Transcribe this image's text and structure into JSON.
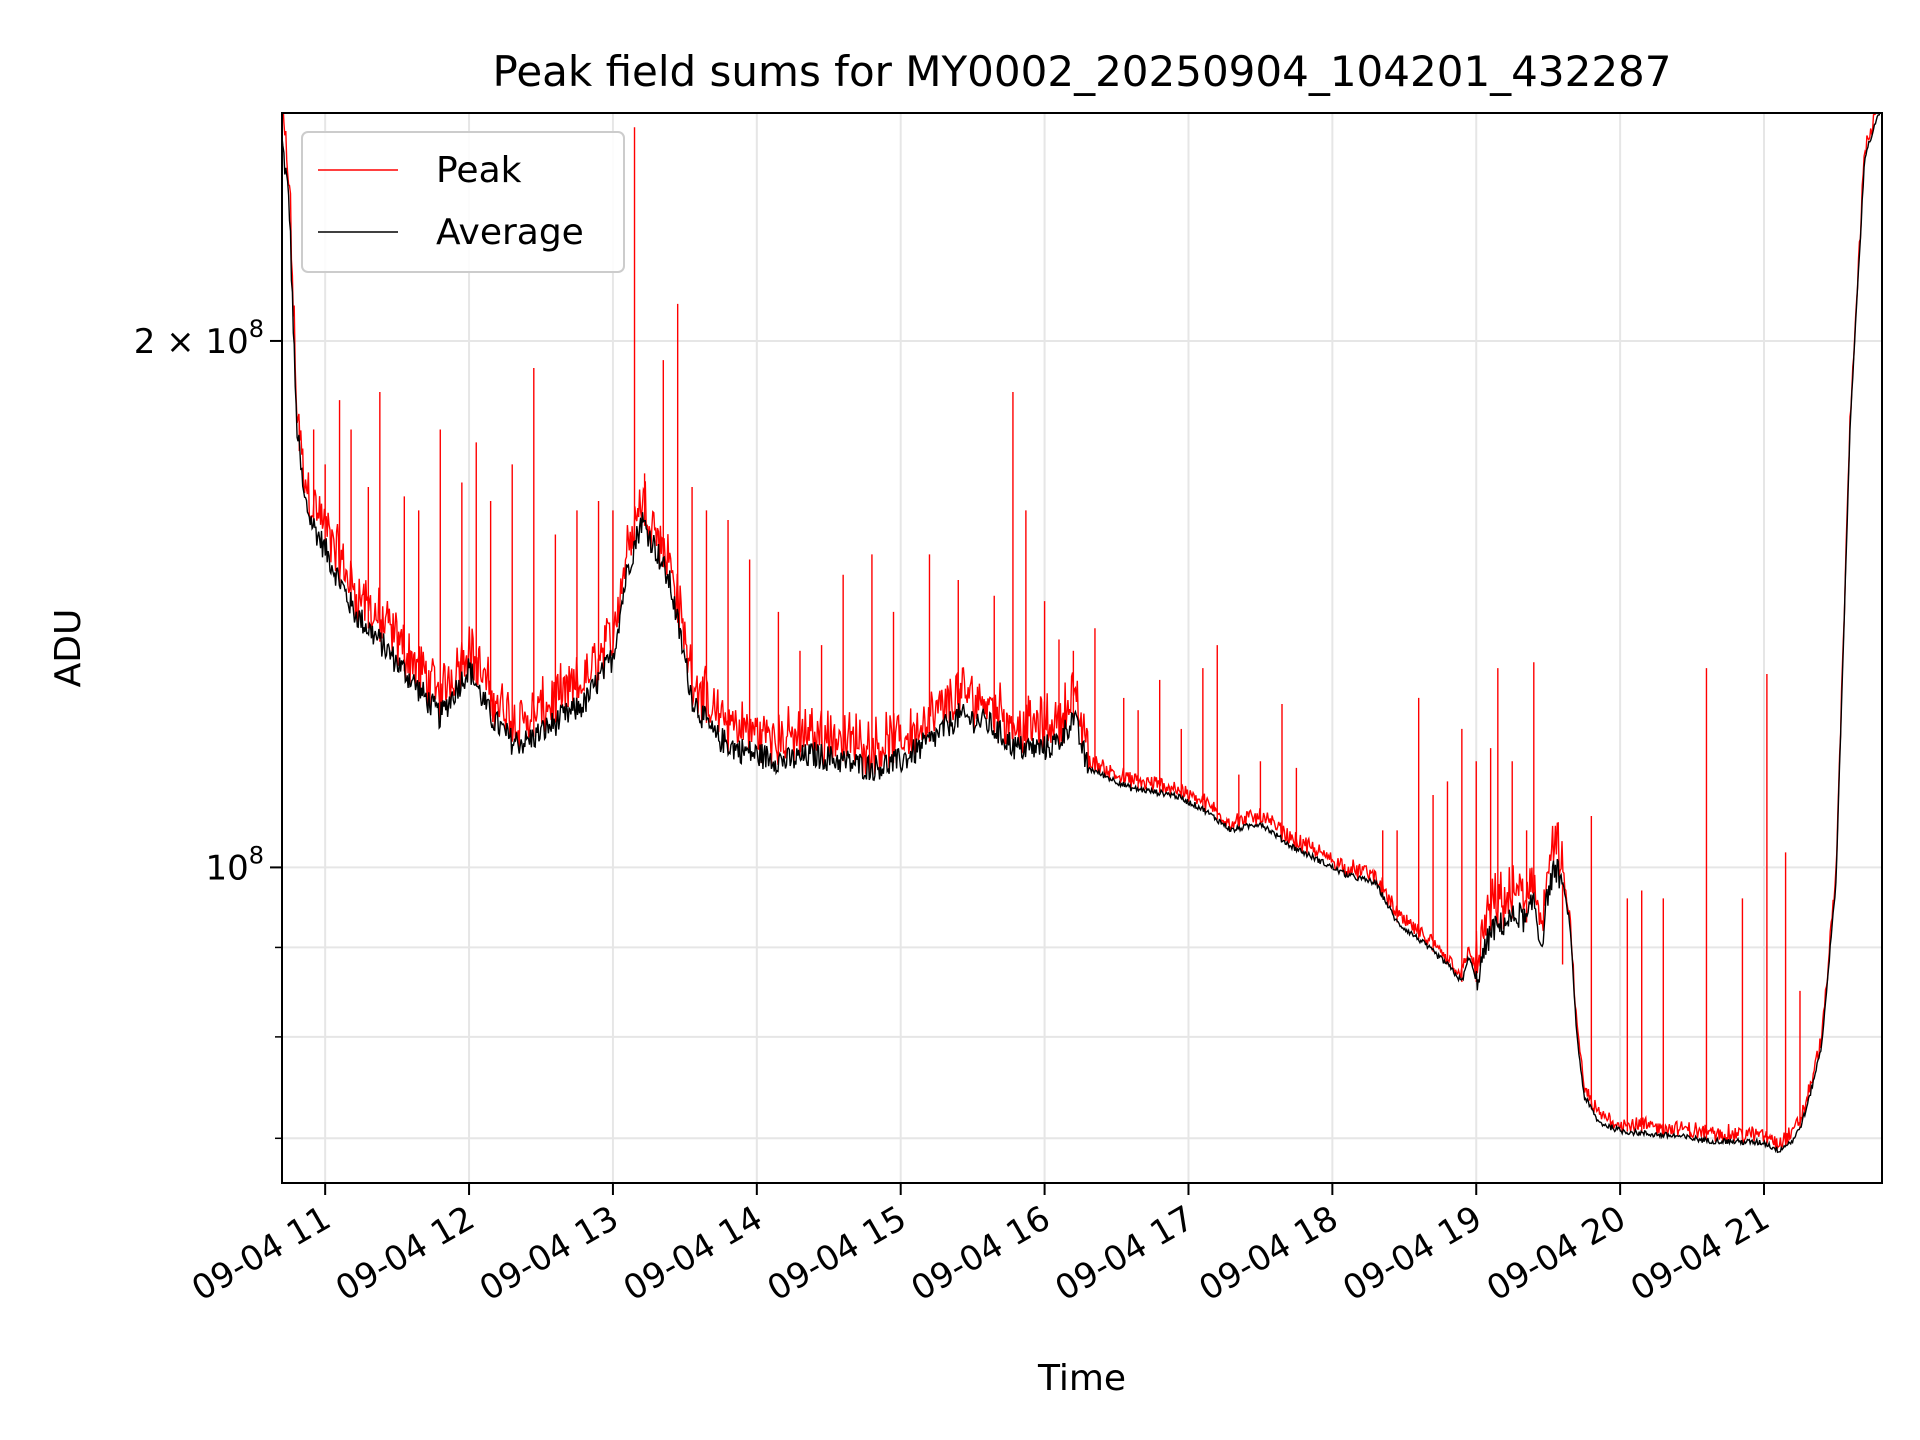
{
  "chart_data": {
    "type": "line",
    "title": "Peak field sums for MY0002_20250904_104201_432287",
    "xlabel": "Time",
    "ylabel": "ADU",
    "yscale": "log",
    "ylim": [
      66000000,
      270000000
    ],
    "x_unit": "hours since 09-04 00:00",
    "xlim": [
      10.7,
      21.82
    ],
    "grid": true,
    "legend": {
      "placement": "top-left",
      "entries": [
        "Peak",
        "Average"
      ]
    },
    "x_ticks": [
      {
        "value": 11,
        "label": "09-04 11"
      },
      {
        "value": 12,
        "label": "09-04 12"
      },
      {
        "value": 13,
        "label": "09-04 13"
      },
      {
        "value": 14,
        "label": "09-04 14"
      },
      {
        "value": 15,
        "label": "09-04 15"
      },
      {
        "value": 16,
        "label": "09-04 16"
      },
      {
        "value": 17,
        "label": "09-04 17"
      },
      {
        "value": 18,
        "label": "09-04 18"
      },
      {
        "value": 19,
        "label": "09-04 19"
      },
      {
        "value": 20,
        "label": "09-04 20"
      },
      {
        "value": 21,
        "label": "09-04 21"
      }
    ],
    "y_ticks_major": [
      {
        "value": 100000000,
        "base": "10",
        "exp": "8",
        "mantissa": ""
      },
      {
        "value": 200000000,
        "base": "10",
        "exp": "8",
        "mantissa": "2"
      }
    ],
    "y_ticks_minor": [
      70000000,
      80000000,
      90000000
    ],
    "series": [
      {
        "name": "Average",
        "color": "#000000",
        "x": [
          10.7,
          10.75,
          10.8,
          10.85,
          10.9,
          11.0,
          11.2,
          11.4,
          11.6,
          11.8,
          11.9,
          12.0,
          12.15,
          12.3,
          12.4,
          12.6,
          12.8,
          13.0,
          13.1,
          13.2,
          13.3,
          13.4,
          13.55,
          13.7,
          13.85,
          14.0,
          14.2,
          14.4,
          14.6,
          14.8,
          15.0,
          15.2,
          15.4,
          15.6,
          15.8,
          16.0,
          16.1,
          16.2,
          16.3,
          16.6,
          16.9,
          17.1,
          17.3,
          17.5,
          17.7,
          17.9,
          18.1,
          18.3,
          18.45,
          18.6,
          18.8,
          18.9,
          18.95,
          19.0,
          19.1,
          19.2,
          19.3,
          19.35,
          19.4,
          19.45,
          19.5,
          19.55,
          19.6,
          19.65,
          19.7,
          19.75,
          19.85,
          20.0,
          20.2,
          20.4,
          20.6,
          20.8,
          21.0,
          21.1,
          21.2,
          21.25,
          21.3,
          21.4,
          21.5,
          21.6,
          21.7,
          21.8
        ],
        "values": [
          260000000,
          240000000,
          180000000,
          163000000,
          158000000,
          152000000,
          140000000,
          134000000,
          128000000,
          122000000,
          126000000,
          130000000,
          122000000,
          118000000,
          118000000,
          121000000,
          124000000,
          132000000,
          148000000,
          158000000,
          152000000,
          145000000,
          125000000,
          119000000,
          117000000,
          116000000,
          115000000,
          116000000,
          115000000,
          114000000,
          115000000,
          118000000,
          122000000,
          121000000,
          117000000,
          117000000,
          118000000,
          122000000,
          114000000,
          111000000,
          110000000,
          108000000,
          105000000,
          106000000,
          103000000,
          101000000,
          99000000,
          98000000,
          93000000,
          91000000,
          88000000,
          86000000,
          89000000,
          86000000,
          92000000,
          93000000,
          94000000,
          93000000,
          96000000,
          90000000,
          97000000,
          100000000,
          98000000,
          93000000,
          80000000,
          74000000,
          71500000,
          70700000,
          70400000,
          70200000,
          69800000,
          69700000,
          69600000,
          68900000,
          69800000,
          71000000,
          73000000,
          79000000,
          98000000,
          180000000,
          255000000,
          270000000
        ]
      },
      {
        "name": "Peak",
        "color": "#ff0000",
        "spikes": [
          {
            "x": 10.82,
            "y": 180000000
          },
          {
            "x": 10.92,
            "y": 178000000
          },
          {
            "x": 11.0,
            "y": 170000000
          },
          {
            "x": 11.1,
            "y": 185000000
          },
          {
            "x": 11.18,
            "y": 178000000
          },
          {
            "x": 11.3,
            "y": 165000000
          },
          {
            "x": 11.38,
            "y": 187000000
          },
          {
            "x": 11.55,
            "y": 163000000
          },
          {
            "x": 11.65,
            "y": 160000000
          },
          {
            "x": 11.8,
            "y": 178000000
          },
          {
            "x": 11.95,
            "y": 166000000
          },
          {
            "x": 12.05,
            "y": 175000000
          },
          {
            "x": 12.15,
            "y": 162000000
          },
          {
            "x": 12.3,
            "y": 170000000
          },
          {
            "x": 12.45,
            "y": 193000000
          },
          {
            "x": 12.6,
            "y": 155000000
          },
          {
            "x": 12.75,
            "y": 160000000
          },
          {
            "x": 12.9,
            "y": 162000000
          },
          {
            "x": 13.0,
            "y": 160000000
          },
          {
            "x": 13.15,
            "y": 265000000
          },
          {
            "x": 13.22,
            "y": 168000000
          },
          {
            "x": 13.35,
            "y": 195000000
          },
          {
            "x": 13.45,
            "y": 210000000
          },
          {
            "x": 13.55,
            "y": 165000000
          },
          {
            "x": 13.65,
            "y": 160000000
          },
          {
            "x": 13.8,
            "y": 158000000
          },
          {
            "x": 13.95,
            "y": 150000000
          },
          {
            "x": 14.15,
            "y": 140000000
          },
          {
            "x": 14.3,
            "y": 133000000
          },
          {
            "x": 14.45,
            "y": 134000000
          },
          {
            "x": 14.6,
            "y": 147000000
          },
          {
            "x": 14.8,
            "y": 151000000
          },
          {
            "x": 14.95,
            "y": 140000000
          },
          {
            "x": 15.2,
            "y": 151000000
          },
          {
            "x": 15.4,
            "y": 146000000
          },
          {
            "x": 15.65,
            "y": 143000000
          },
          {
            "x": 15.78,
            "y": 187000000
          },
          {
            "x": 15.87,
            "y": 160000000
          },
          {
            "x": 16.0,
            "y": 142000000
          },
          {
            "x": 16.1,
            "y": 135000000
          },
          {
            "x": 16.2,
            "y": 133000000
          },
          {
            "x": 16.35,
            "y": 137000000
          },
          {
            "x": 16.55,
            "y": 125000000
          },
          {
            "x": 16.65,
            "y": 123000000
          },
          {
            "x": 16.8,
            "y": 128000000
          },
          {
            "x": 16.95,
            "y": 120000000
          },
          {
            "x": 17.1,
            "y": 130000000
          },
          {
            "x": 17.2,
            "y": 134000000
          },
          {
            "x": 17.35,
            "y": 113000000
          },
          {
            "x": 17.5,
            "y": 115000000
          },
          {
            "x": 17.65,
            "y": 124000000
          },
          {
            "x": 17.75,
            "y": 114000000
          },
          {
            "x": 18.35,
            "y": 105000000
          },
          {
            "x": 18.45,
            "y": 105000000
          },
          {
            "x": 18.6,
            "y": 125000000
          },
          {
            "x": 18.7,
            "y": 110000000
          },
          {
            "x": 18.8,
            "y": 112000000
          },
          {
            "x": 18.9,
            "y": 120000000
          },
          {
            "x": 19.0,
            "y": 115000000
          },
          {
            "x": 19.1,
            "y": 117000000
          },
          {
            "x": 19.15,
            "y": 130000000
          },
          {
            "x": 19.25,
            "y": 115000000
          },
          {
            "x": 19.35,
            "y": 105000000
          },
          {
            "x": 19.4,
            "y": 131000000
          },
          {
            "x": 19.6,
            "y": 88000000
          },
          {
            "x": 19.8,
            "y": 107000000
          },
          {
            "x": 20.05,
            "y": 96000000
          },
          {
            "x": 20.15,
            "y": 97000000
          },
          {
            "x": 20.3,
            "y": 96000000
          },
          {
            "x": 20.6,
            "y": 130000000
          },
          {
            "x": 20.85,
            "y": 96000000
          },
          {
            "x": 21.02,
            "y": 129000000
          },
          {
            "x": 21.15,
            "y": 102000000
          },
          {
            "x": 21.25,
            "y": 85000000
          }
        ]
      }
    ]
  }
}
